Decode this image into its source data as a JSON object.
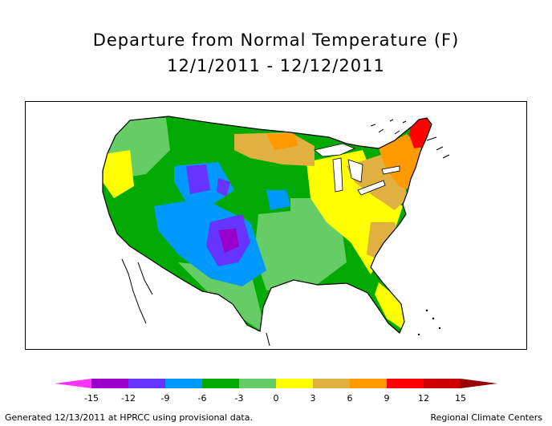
{
  "header": {
    "title": "Departure from Normal Temperature (F)",
    "date_range": "12/1/2011 - 12/12/2011"
  },
  "legend": {
    "ticks": [
      "-15",
      "-12",
      "-9",
      "-6",
      "-3",
      "0",
      "3",
      "6",
      "9",
      "12",
      "15"
    ],
    "colors": [
      "#ff33ff",
      "#9900cc",
      "#6633ff",
      "#0099ff",
      "#00aa00",
      "#66cc66",
      "#ffff00",
      "#e0b040",
      "#ff9900",
      "#ff0000",
      "#cc0000",
      "#990000"
    ]
  },
  "map": {
    "palette": {
      "deep_purple": "#9900cc",
      "purple": "#6633ff",
      "blue": "#0099ff",
      "green": "#00aa00",
      "light_green": "#66cc66",
      "yellow": "#ffff00",
      "gold": "#e0b040",
      "orange": "#ff9900",
      "red": "#ff0000",
      "water": "#ffffff"
    }
  },
  "footer": {
    "left": "Generated 12/13/2011 at HPRCC using provisional data.",
    "right": "Regional Climate Centers"
  }
}
